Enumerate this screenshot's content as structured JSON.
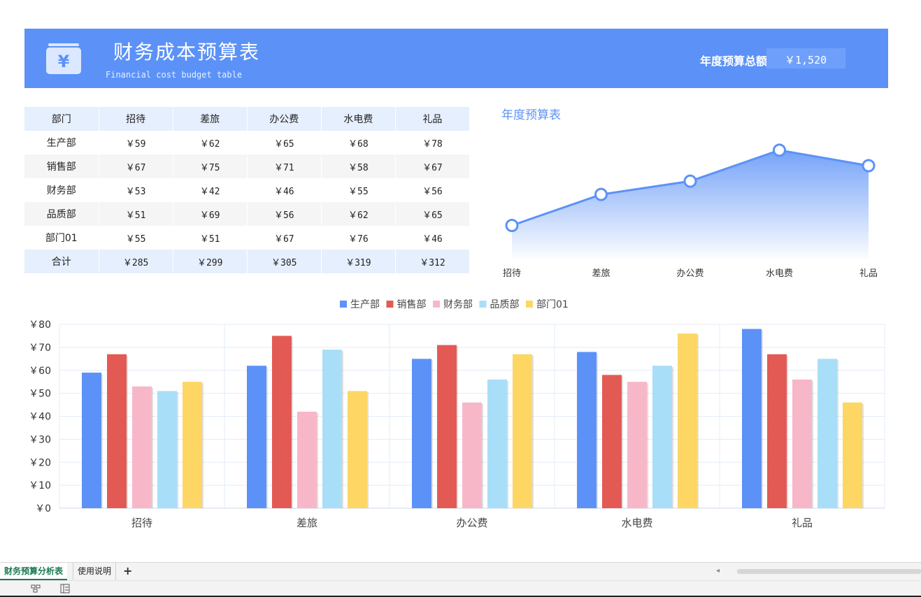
{
  "banner": {
    "title": "财务成本预算表",
    "subtitle": "Financial cost budget table",
    "total_label": "年度预算总额",
    "total_value": "￥1,520",
    "logo_symbol": "¥"
  },
  "table": {
    "headers": [
      "部门",
      "招待",
      "差旅",
      "办公费",
      "水电费",
      "礼品"
    ],
    "rows": [
      [
        "生产部",
        "￥59",
        "￥62",
        "￥65",
        "￥68",
        "￥78"
      ],
      [
        "销售部",
        "￥67",
        "￥75",
        "￥71",
        "￥58",
        "￥67"
      ],
      [
        "财务部",
        "￥53",
        "￥42",
        "￥46",
        "￥55",
        "￥56"
      ],
      [
        "品质部",
        "￥51",
        "￥69",
        "￥56",
        "￥62",
        "￥65"
      ],
      [
        "部门01",
        "￥55",
        "￥51",
        "￥67",
        "￥76",
        "￥46"
      ]
    ],
    "total_row": [
      "合计",
      "￥285",
      "￥299",
      "￥305",
      "￥319",
      "￥312"
    ]
  },
  "area_chart_title": "年度预算表",
  "chart_data": [
    {
      "type": "area",
      "title": "年度预算表",
      "categories": [
        "招待",
        "差旅",
        "办公费",
        "水电费",
        "礼品"
      ],
      "values": [
        285,
        299,
        305,
        319,
        312
      ],
      "ylim": [
        270,
        330
      ],
      "grid": false,
      "legend": "none",
      "color": "#5c92f7"
    },
    {
      "type": "bar",
      "categories": [
        "招待",
        "差旅",
        "办公费",
        "水电费",
        "礼品"
      ],
      "series": [
        {
          "name": "生产部",
          "values": [
            59,
            62,
            65,
            68,
            78
          ],
          "color": "#5c92f7"
        },
        {
          "name": "销售部",
          "values": [
            67,
            75,
            71,
            58,
            67
          ],
          "color": "#e35a54"
        },
        {
          "name": "财务部",
          "values": [
            53,
            42,
            46,
            55,
            56
          ],
          "color": "#f8b7c8"
        },
        {
          "name": "品质部",
          "values": [
            51,
            69,
            56,
            62,
            65
          ],
          "color": "#a9def8"
        },
        {
          "name": "部门01",
          "values": [
            55,
            51,
            67,
            76,
            46
          ],
          "color": "#fdd664"
        }
      ],
      "yticks": [
        "￥0",
        "￥10",
        "￥20",
        "￥30",
        "￥40",
        "￥50",
        "￥60",
        "￥70",
        "￥80"
      ],
      "ylim": [
        0,
        80
      ],
      "grid": true,
      "legend": "top-center"
    }
  ],
  "sheet_tabs": [
    {
      "label": "财务预算分析表",
      "active": true
    },
    {
      "label": "使用说明",
      "active": false
    }
  ],
  "add_sheet_label": "+",
  "status_icons": [
    "sheet-list-icon",
    "page-layout-icon"
  ]
}
